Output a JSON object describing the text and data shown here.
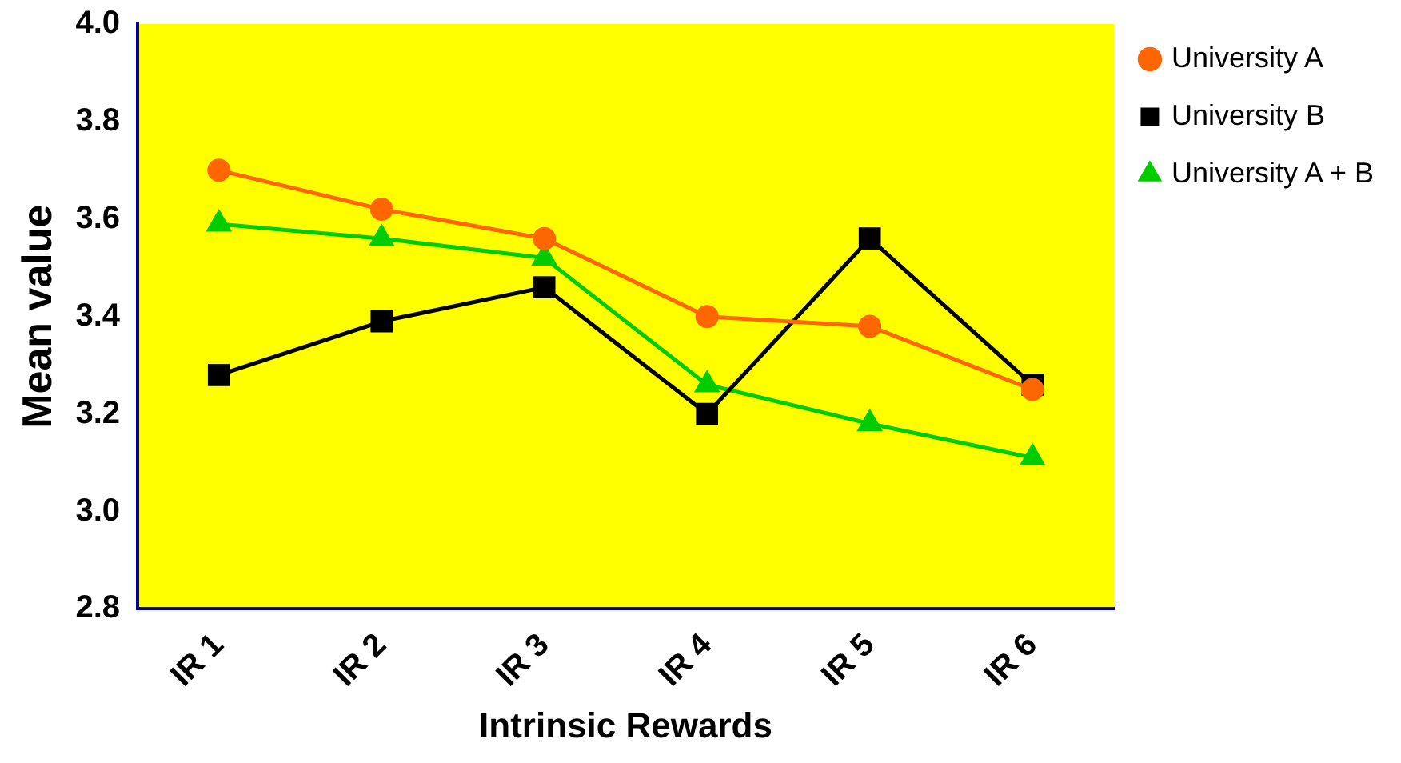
{
  "chart_data": {
    "type": "line",
    "xlabel": "Intrinsic Rewards",
    "ylabel": "Mean value",
    "categories": [
      "IR 1",
      "IR 2",
      "IR 3",
      "IR 4",
      "IR 5",
      "IR 6"
    ],
    "series": [
      {
        "name": "University A",
        "color": "#ff6600",
        "marker": "circle",
        "values": [
          3.7,
          3.62,
          3.56,
          3.4,
          3.38,
          3.25
        ]
      },
      {
        "name": "University B",
        "color": "#000000",
        "marker": "square",
        "values": [
          3.28,
          3.39,
          3.46,
          3.2,
          3.56,
          3.26
        ]
      },
      {
        "name": "University A + B",
        "color": "#00cc00",
        "marker": "triangle",
        "values": [
          3.59,
          3.56,
          3.52,
          3.26,
          3.18,
          3.11
        ]
      }
    ],
    "ylim": [
      2.8,
      4.0
    ],
    "yticks": [
      {
        "value": 2.8,
        "label": "2.8"
      },
      {
        "value": 3.0,
        "label": "3.0"
      },
      {
        "value": 3.2,
        "label": "3.2"
      },
      {
        "value": 3.4,
        "label": "3.4"
      },
      {
        "value": 3.6,
        "label": "3.6"
      },
      {
        "value": 3.8,
        "label": "3.8"
      },
      {
        "value": 4.0,
        "label": "4.0"
      }
    ],
    "grid": false,
    "legend": "top right",
    "line_style": "solid"
  }
}
